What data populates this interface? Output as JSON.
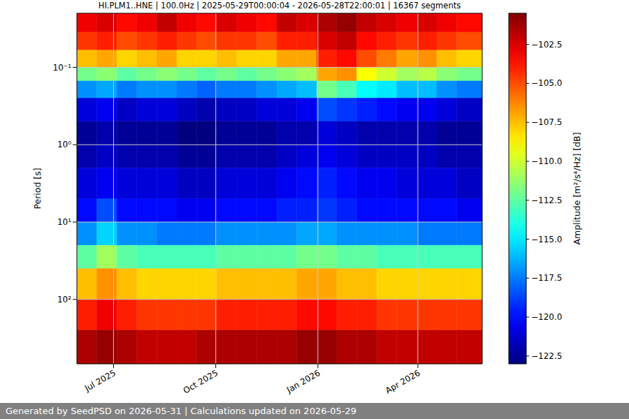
{
  "chart_data": {
    "type": "heatmap",
    "title": "HI.PLM1..HNE | 100.0Hz | 2025-05-29T00:00:04 - 2026-05-28T22:00:01 | 16367 segments",
    "y_label": "Period [s]",
    "footer": "Generated by SeedPSD on 2026-05-31 | Calculations updated on 2026-05-29",
    "log": "y",
    "grid": true,
    "xlim": [
      "2025-05-29T00:00:04",
      "2026-05-28T22:00:01"
    ],
    "xticks": [
      {
        "value": "2025-07-01",
        "label": "Jul 2025"
      },
      {
        "value": "2025-10-01",
        "label": "Oct 2025"
      },
      {
        "value": "2026-01-01",
        "label": "Jan 2026"
      },
      {
        "value": "2026-04-01",
        "label": "Apr 2026"
      }
    ],
    "ylim": [
      0.02,
      680
    ],
    "yticks": [
      {
        "value": 0.1,
        "label": "10⁻¹"
      },
      {
        "value": 1,
        "label": "10⁰"
      },
      {
        "value": 10,
        "label": "10¹"
      },
      {
        "value": 100,
        "label": "10²"
      }
    ],
    "x_edges": [
      "2025-05-29T00:00:04",
      "2025-06-16",
      "2025-07-04",
      "2025-07-22",
      "2025-08-09",
      "2025-08-27",
      "2025-09-14",
      "2025-10-02",
      "2025-10-20",
      "2025-11-07",
      "2025-11-25",
      "2025-12-13",
      "2025-12-31",
      "2026-01-18",
      "2026-02-05",
      "2026-02-23",
      "2026-03-13",
      "2026-03-31",
      "2026-04-18",
      "2026-05-06",
      "2026-05-28T22:00:01"
    ],
    "y_edges": [
      0.02,
      0.035,
      0.06,
      0.1,
      0.15,
      0.25,
      0.5,
      1,
      2,
      5,
      10,
      20,
      40,
      100,
      250,
      680
    ],
    "cells": [
      [
        -103,
        -102.5,
        -103.5,
        -103,
        -102,
        -103,
        -103.5,
        -102.5,
        -103,
        -103.5,
        -102,
        -102.5,
        -101.5,
        -101,
        -102,
        -102.5,
        -103,
        -102.5,
        -103,
        -103.5
      ],
      [
        -104.5,
        -104,
        -105,
        -104.5,
        -104,
        -104.5,
        -105,
        -104.5,
        -104.5,
        -105,
        -104,
        -104,
        -102.5,
        -102,
        -103.5,
        -104,
        -104.5,
        -104,
        -104.5,
        -105
      ],
      [
        -107.5,
        -107,
        -108,
        -107.5,
        -107,
        -108,
        -108,
        -107.5,
        -108,
        -108,
        -107,
        -107,
        -104,
        -103.5,
        -105,
        -106,
        -107,
        -106.5,
        -107.5,
        -108
      ],
      [
        -112,
        -111.5,
        -112.5,
        -112,
        -111.5,
        -112,
        -112.5,
        -112,
        -112.5,
        -112,
        -111.5,
        -111,
        -107,
        -106.5,
        -109,
        -110,
        -111,
        -110.5,
        -111.5,
        -112
      ],
      [
        -117,
        -116.5,
        -117.5,
        -117,
        -117,
        -117.5,
        -118,
        -117.5,
        -117.5,
        -117,
        -116.5,
        -116,
        -112,
        -113,
        -114.5,
        -115,
        -116,
        -116,
        -117,
        -117.5
      ],
      [
        -121,
        -120.5,
        -121.5,
        -121,
        -121,
        -121.5,
        -122,
        -121.5,
        -121.5,
        -121,
        -121,
        -120.5,
        -118.5,
        -119,
        -119.5,
        -120,
        -120.5,
        -120.5,
        -121,
        -121.5
      ],
      [
        -122.5,
        -122,
        -122.5,
        -122.5,
        -122.5,
        -123,
        -123,
        -122.5,
        -122.5,
        -122.5,
        -122,
        -122,
        -121,
        -121.5,
        -122,
        -122,
        -122,
        -122,
        -122.5,
        -122.5
      ],
      [
        -122,
        -121.5,
        -122,
        -122,
        -122,
        -122.5,
        -122.5,
        -122,
        -122,
        -122,
        -121.5,
        -121,
        -120.5,
        -121,
        -121.5,
        -121.5,
        -121.5,
        -121.5,
        -122,
        -122
      ],
      [
        -121,
        -120.5,
        -121,
        -121,
        -121,
        -121.5,
        -121.5,
        -121,
        -121,
        -121,
        -120.5,
        -120,
        -119.5,
        -120,
        -120.5,
        -120.5,
        -121,
        -121,
        -121,
        -121.5
      ],
      [
        -120,
        -118.5,
        -120,
        -120,
        -120,
        -120.5,
        -120.5,
        -120,
        -120,
        -120,
        -119.5,
        -119.5,
        -119,
        -119.5,
        -120,
        -120,
        -120,
        -120,
        -120,
        -120.5
      ],
      [
        -117,
        -115.5,
        -117,
        -117,
        -117.5,
        -117.5,
        -117.5,
        -117,
        -117,
        -117,
        -117,
        -116.5,
        -116.5,
        -117,
        -117,
        -117,
        -117,
        -117.5,
        -117.5,
        -117.5
      ],
      [
        -112.5,
        -111,
        -112.5,
        -113,
        -113,
        -113,
        -113,
        -112.5,
        -112.5,
        -112.5,
        -112.5,
        -112,
        -112,
        -112.5,
        -112.5,
        -113,
        -113,
        -113,
        -113,
        -113
      ],
      [
        -107.5,
        -106.5,
        -107.5,
        -108,
        -108,
        -108,
        -108,
        -107.5,
        -107.5,
        -107.5,
        -107.5,
        -107,
        -107,
        -107.5,
        -107.5,
        -108,
        -108,
        -108,
        -108,
        -108
      ],
      [
        -104,
        -103,
        -104,
        -104.5,
        -104.5,
        -104.5,
        -104.5,
        -104,
        -104,
        -104,
        -104,
        -103.5,
        -103.5,
        -104,
        -104,
        -104.5,
        -104.5,
        -104.5,
        -104.5,
        -104.5
      ],
      [
        -101.5,
        -101,
        -101.5,
        -102,
        -102,
        -102,
        -101.5,
        -101.5,
        -101.5,
        -101.5,
        -101.5,
        -101,
        -101,
        -101.5,
        -101.5,
        -102,
        -102,
        -102,
        -102,
        -102
      ]
    ],
    "colorbar": {
      "label": "Amplitude [m²/s⁴/Hz] [dB]",
      "range": [
        -123,
        -100.5
      ],
      "ticks": [
        {
          "value": -122.5,
          "label": "−122.5"
        },
        {
          "value": -120,
          "label": "−120.0"
        },
        {
          "value": -117.5,
          "label": "−117.5"
        },
        {
          "value": -115,
          "label": "−115.0"
        },
        {
          "value": -112.5,
          "label": "−112.5"
        },
        {
          "value": -110,
          "label": "−110.0"
        },
        {
          "value": -107.5,
          "label": "−107.5"
        },
        {
          "value": -105,
          "label": "−105.0"
        },
        {
          "value": -102.5,
          "label": "−102.5"
        }
      ]
    }
  }
}
